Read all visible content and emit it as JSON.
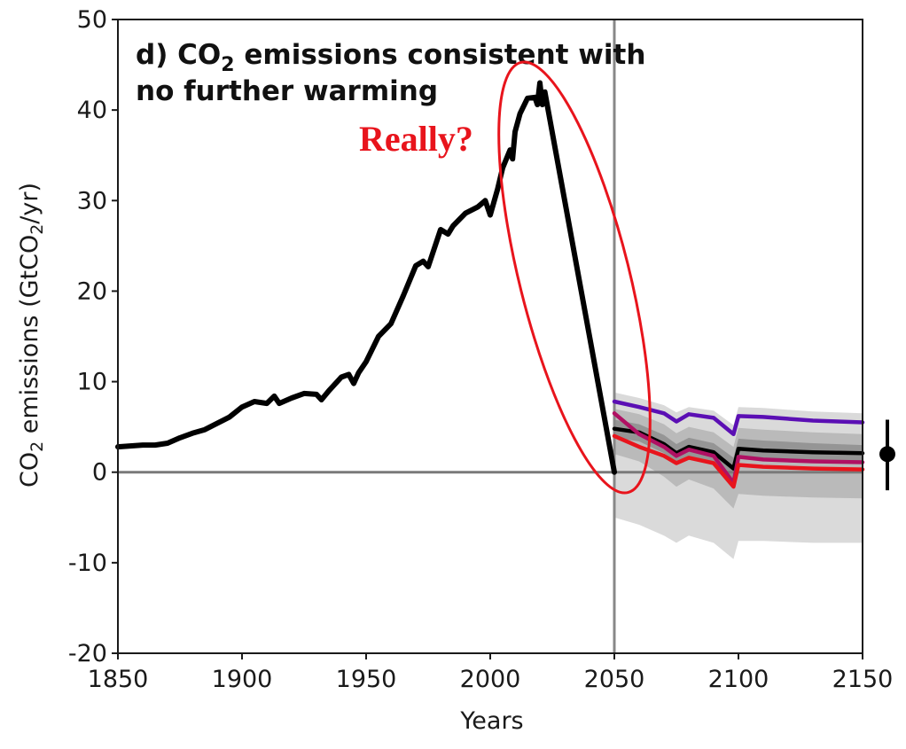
{
  "chart_data": {
    "type": "line",
    "title_prefix": "d) CO",
    "title_sub": "2",
    "title_rest": " emissions consistent with",
    "title_line2": "no further warming",
    "xlabel": "Years",
    "ylabel_prefix": "CO",
    "ylabel_sub": "2",
    "ylabel_mid": " emissions (GtCO",
    "ylabel_sub2": "2",
    "ylabel_end": "/yr)",
    "xlim": [
      1850,
      2150
    ],
    "ylim": [
      -20,
      50
    ],
    "xticks": [
      "1850",
      "1900",
      "1950",
      "2000",
      "2050",
      "2100",
      "2150"
    ],
    "yticks": [
      "50",
      "40",
      "30",
      "20",
      "10",
      "0",
      "-10",
      "-20"
    ],
    "grid": false,
    "reference_lines": {
      "horizontal_y": 0,
      "vertical_x": 2050
    },
    "annotation": {
      "text": "Really?",
      "color": "#e8141c"
    },
    "series": [
      {
        "color": "#000000",
        "x": [
          1850,
          1855,
          1860,
          1865,
          1870,
          1875,
          1880,
          1885,
          1890,
          1895,
          1900,
          1905,
          1910,
          1913,
          1915,
          1920,
          1925,
          1930,
          1932,
          1935,
          1940,
          1943,
          1945,
          1947,
          1950,
          1955,
          1960,
          1965,
          1970,
          1973,
          1975,
          1980,
          1983,
          1985,
          1990,
          1995,
          1998,
          2000,
          2003,
          2005,
          2008,
          2009,
          2010,
          2012,
          2015,
          2018,
          2019,
          2020,
          2021,
          2022,
          2050
        ],
        "values": [
          2.8,
          2.9,
          3.0,
          3.0,
          3.2,
          3.8,
          4.3,
          4.7,
          5.4,
          6.1,
          7.2,
          7.8,
          7.6,
          8.4,
          7.6,
          8.2,
          8.7,
          8.6,
          8.0,
          9.0,
          10.5,
          10.8,
          9.8,
          11.0,
          12.2,
          15.0,
          16.4,
          19.5,
          22.8,
          23.3,
          22.7,
          26.8,
          26.3,
          27.2,
          28.6,
          29.3,
          30.0,
          28.4,
          31.3,
          33.6,
          35.6,
          34.6,
          37.6,
          39.6,
          41.3,
          41.4,
          40.6,
          43.0,
          40.6,
          42.0,
          0.0
        ]
      },
      {
        "color": "#5b0fb4",
        "x": [
          2050,
          2060,
          2070,
          2075,
          2080,
          2090,
          2098,
          2100,
          2110,
          2130,
          2150
        ],
        "values": [
          7.8,
          7.2,
          6.5,
          5.6,
          6.4,
          6.0,
          4.2,
          6.2,
          6.1,
          5.7,
          5.5
        ]
      },
      {
        "color": "#000000",
        "x": [
          2050,
          2060,
          2070,
          2075,
          2080,
          2090,
          2098,
          2100,
          2110,
          2130,
          2150
        ],
        "values": [
          4.8,
          4.4,
          3.1,
          2.1,
          2.8,
          2.2,
          0.4,
          2.6,
          2.4,
          2.2,
          2.1
        ]
      },
      {
        "color": "#b01063",
        "x": [
          2050,
          2060,
          2070,
          2075,
          2080,
          2090,
          2098,
          2100,
          2110,
          2130,
          2150
        ],
        "values": [
          6.5,
          4.2,
          2.8,
          1.8,
          2.5,
          1.8,
          -1.2,
          1.7,
          1.4,
          1.2,
          1.1
        ]
      },
      {
        "color": "#e8141c",
        "x": [
          2050,
          2060,
          2070,
          2075,
          2080,
          2090,
          2098,
          2100,
          2110,
          2130,
          2150
        ],
        "values": [
          4.0,
          2.8,
          1.8,
          1.0,
          1.6,
          1.0,
          -1.6,
          0.8,
          0.6,
          0.4,
          0.3
        ]
      }
    ],
    "bands": [
      {
        "color": "#d4d4d4",
        "x": [
          2050,
          2060,
          2070,
          2075,
          2080,
          2090,
          2098,
          2100,
          2110,
          2130,
          2150
        ],
        "upper": [
          8.8,
          8.2,
          7.4,
          6.6,
          7.2,
          6.8,
          5.2,
          7.2,
          7.1,
          6.7,
          6.5
        ],
        "lower": [
          -5.0,
          -5.8,
          -7.0,
          -7.8,
          -7.0,
          -7.8,
          -9.6,
          -7.6,
          -7.6,
          -7.8,
          -7.8
        ]
      },
      {
        "color": "#b4b4b4",
        "x": [
          2050,
          2060,
          2070,
          2075,
          2080,
          2090,
          2098,
          2100,
          2110,
          2130,
          2150
        ],
        "upper": [
          7.0,
          6.4,
          5.3,
          4.3,
          5.0,
          4.4,
          2.8,
          4.9,
          4.7,
          4.4,
          4.2
        ],
        "lower": [
          2.0,
          1.2,
          -0.5,
          -1.6,
          -0.8,
          -1.8,
          -4.0,
          -2.4,
          -2.6,
          -2.8,
          -2.9
        ]
      },
      {
        "color": "#8e8e8e",
        "x": [
          2050,
          2060,
          2070,
          2075,
          2080,
          2090,
          2098,
          2100,
          2110,
          2130,
          2150
        ],
        "upper": [
          5.8,
          5.3,
          4.1,
          3.1,
          3.8,
          3.2,
          1.6,
          3.7,
          3.5,
          3.2,
          3.0
        ],
        "lower": [
          3.8,
          3.4,
          2.1,
          1.1,
          1.8,
          1.2,
          -0.8,
          1.5,
          1.3,
          1.1,
          1.0
        ]
      }
    ],
    "range_marker": {
      "center": 2.0,
      "low": -2.0,
      "high": 5.8
    }
  }
}
